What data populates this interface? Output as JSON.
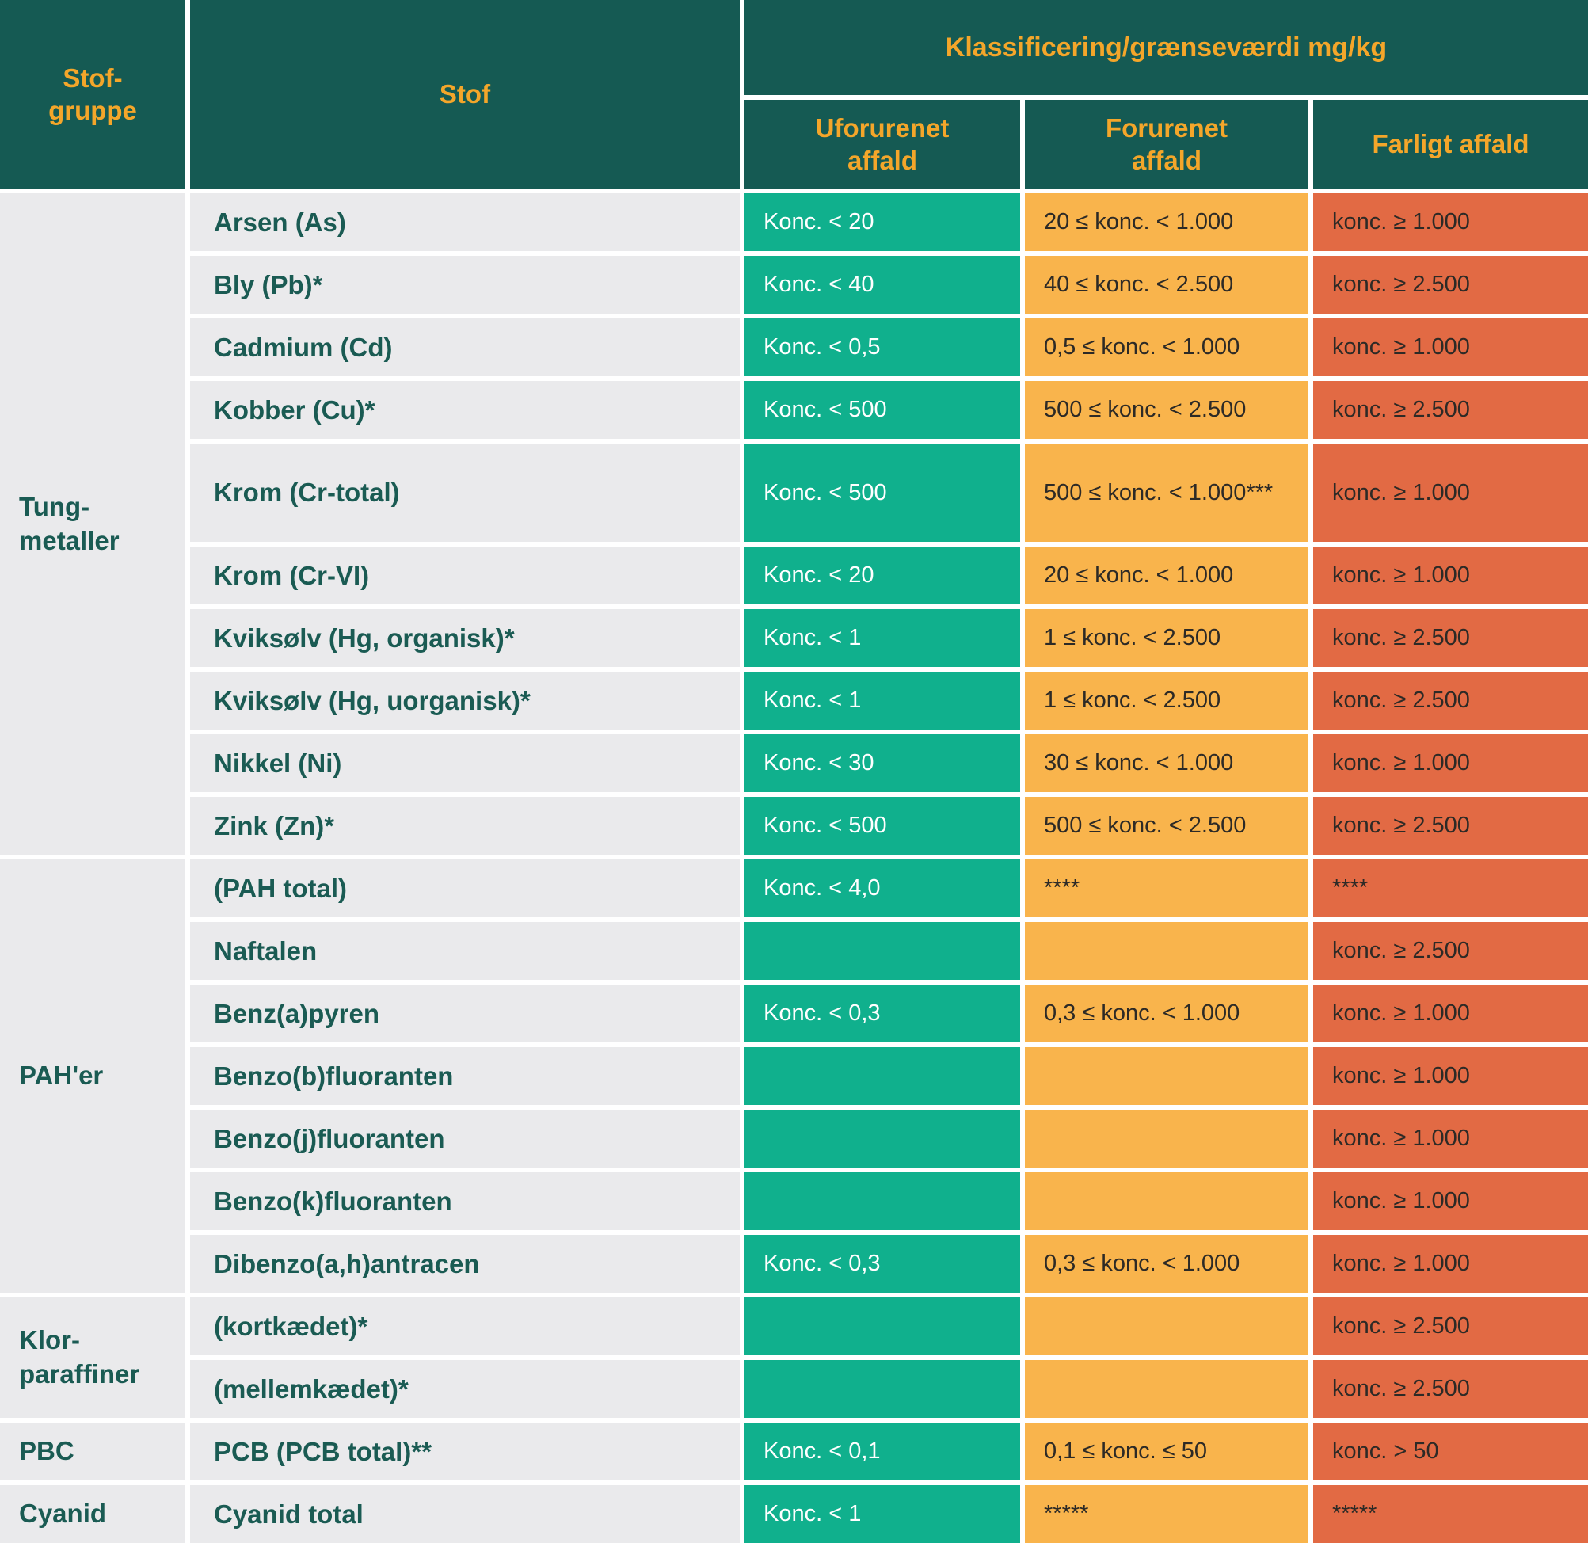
{
  "colors": {
    "teal": "#155a53",
    "amber": "#f4a62a",
    "rowgray": "#eaeaec",
    "green": "#10b08d",
    "orange": "#f9b44c",
    "red": "#e26a44",
    "darktext": "#2d2a26",
    "tealtext": "#1a5b53"
  },
  "header": {
    "stof_gruppe": "Stof-\ngruppe",
    "stof": "Stof",
    "klassificering": "Klassificering/grænseværdi mg/kg",
    "uforurenet": "Uforurenet\naffald",
    "forurenet": "Forurenet\naffald",
    "farligt": "Farligt affald"
  },
  "groups": [
    {
      "label": "Tung-\nmetaller",
      "rows": [
        {
          "stof": "Arsen (As)",
          "uforurenet": "Konc. < 20",
          "forurenet": "20 ≤ konc. < 1.000",
          "farligt": "konc. ≥ 1.000"
        },
        {
          "stof": "Bly (Pb)*",
          "uforurenet": "Konc. < 40",
          "forurenet": "40 ≤ konc. < 2.500",
          "farligt": "konc. ≥ 2.500"
        },
        {
          "stof": "Cadmium (Cd)",
          "uforurenet": "Konc. < 0,5",
          "forurenet": "0,5 ≤ konc. < 1.000",
          "farligt": "konc. ≥ 1.000"
        },
        {
          "stof": "Kobber (Cu)*",
          "uforurenet": "Konc. < 500",
          "forurenet": "500 ≤ konc. < 2.500",
          "farligt": "konc. ≥ 2.500"
        },
        {
          "stof": "Krom (Cr-total)",
          "uforurenet": "Konc. < 500",
          "forurenet": "500 ≤ konc. < 1.000***",
          "farligt": "konc. ≥ 1.000"
        },
        {
          "stof": "Krom (Cr-VI)",
          "uforurenet": "Konc. < 20",
          "forurenet": "20 ≤ konc. < 1.000",
          "farligt": "konc. ≥ 1.000"
        },
        {
          "stof": "Kviksølv (Hg, organisk)*",
          "uforurenet": "Konc. < 1",
          "forurenet": "1 ≤ konc. < 2.500",
          "farligt": "konc. ≥ 2.500"
        },
        {
          "stof": "Kviksølv (Hg, uorganisk)*",
          "uforurenet": "Konc. < 1",
          "forurenet": "1 ≤ konc. < 2.500",
          "farligt": "konc. ≥ 2.500"
        },
        {
          "stof": "Nikkel (Ni)",
          "uforurenet": "Konc. < 30",
          "forurenet": "30 ≤ konc. < 1.000",
          "farligt": "konc. ≥ 1.000"
        },
        {
          "stof": "Zink (Zn)*",
          "uforurenet": "Konc. < 500",
          "forurenet": "500 ≤ konc. < 2.500",
          "farligt": "konc. ≥ 2.500"
        }
      ]
    },
    {
      "label": "PAH'er",
      "rows": [
        {
          "stof": "(PAH total)",
          "uforurenet": "Konc. < 4,0",
          "forurenet": "****",
          "farligt": "****"
        },
        {
          "stof": "Naftalen",
          "uforurenet": "",
          "forurenet": "",
          "farligt": "konc. ≥ 2.500"
        },
        {
          "stof": "Benz(a)pyren",
          "uforurenet": "Konc. < 0,3",
          "forurenet": "0,3 ≤ konc. < 1.000",
          "farligt": "konc. ≥ 1.000"
        },
        {
          "stof": "Benzo(b)fluoranten",
          "uforurenet": "",
          "forurenet": "",
          "farligt": "konc. ≥ 1.000"
        },
        {
          "stof": "Benzo(j)fluoranten",
          "uforurenet": "",
          "forurenet": "",
          "farligt": "konc. ≥ 1.000"
        },
        {
          "stof": "Benzo(k)fluoranten",
          "uforurenet": "",
          "forurenet": "",
          "farligt": "konc. ≥ 1.000"
        },
        {
          "stof": "Dibenzo(a,h)antracen",
          "uforurenet": "Konc. < 0,3",
          "forurenet": "0,3 ≤ konc. < 1.000",
          "farligt": "konc. ≥ 1.000"
        }
      ]
    },
    {
      "label": "Klor-\nparaffiner",
      "rows": [
        {
          "stof": "(kortkædet)*",
          "uforurenet": "",
          "forurenet": "",
          "farligt": "konc. ≥ 2.500"
        },
        {
          "stof": "(mellemkædet)*",
          "uforurenet": "",
          "forurenet": "",
          "farligt": "konc. ≥ 2.500"
        }
      ]
    },
    {
      "label": "PBC",
      "rows": [
        {
          "stof": "PCB (PCB total)**",
          "uforurenet": "Konc. < 0,1",
          "forurenet": "0,1 ≤ konc. ≤ 50",
          "farligt": "konc. > 50"
        }
      ]
    },
    {
      "label": "Cyanid",
      "rows": [
        {
          "stof": "Cyanid total",
          "uforurenet": "Konc. < 1",
          "forurenet": "*****",
          "farligt": "*****"
        }
      ]
    }
  ]
}
